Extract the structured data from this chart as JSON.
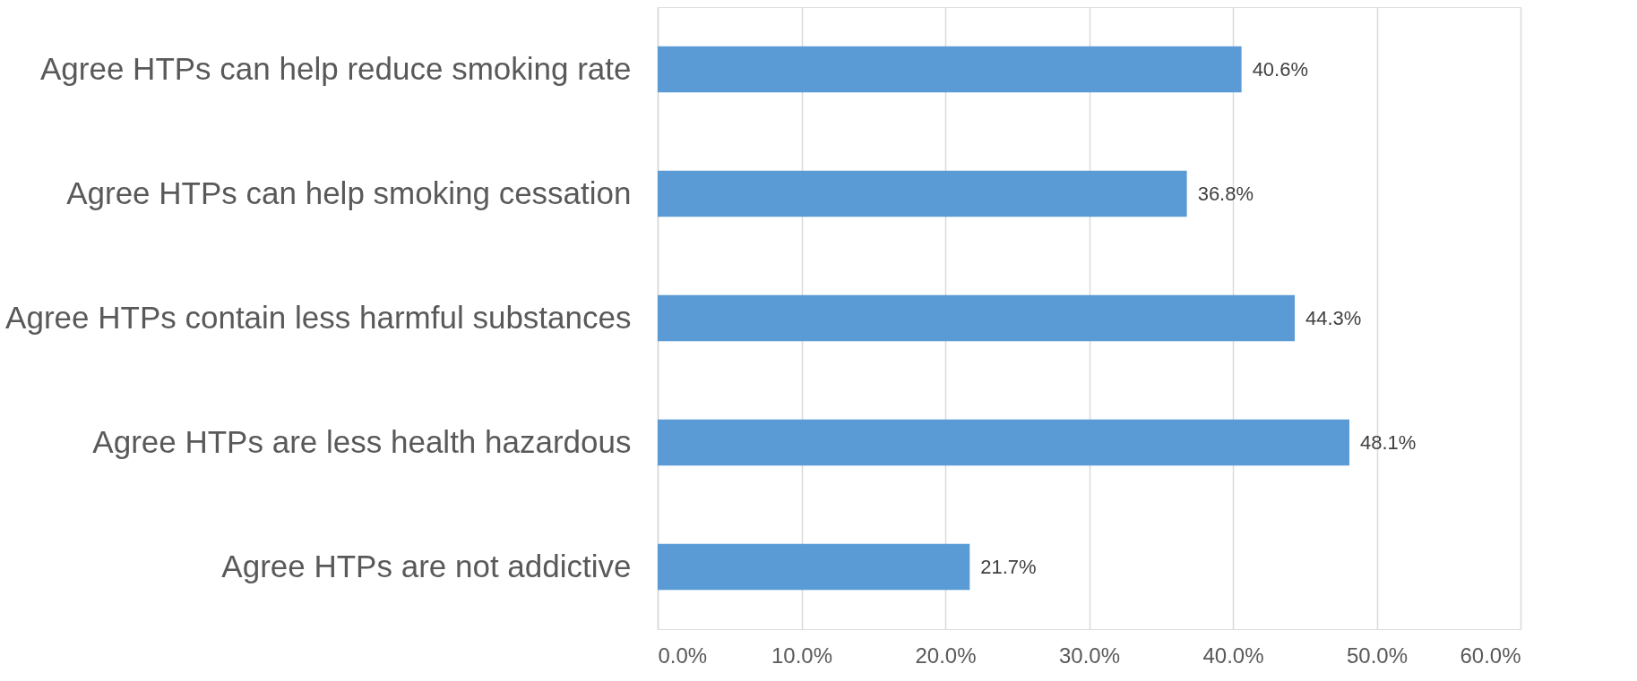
{
  "chart_data": {
    "type": "bar",
    "orientation": "horizontal",
    "categories": [
      "Agree HTPs can help reduce smoking rate",
      "Agree HTPs can help smoking cessation",
      "Agree HTPs contain less harmful substances",
      "Agree HTPs are less health hazardous",
      "Agree HTPs are not addictive"
    ],
    "values": [
      40.6,
      36.8,
      44.3,
      48.1,
      21.7
    ],
    "value_labels": [
      "40.6%",
      "36.8%",
      "44.3%",
      "48.1%",
      "21.7%"
    ],
    "color": "#5b9bd5",
    "xlim": [
      0,
      60
    ],
    "xticks": [
      {
        "value": 0,
        "label": "0.0%"
      },
      {
        "value": 10,
        "label": "10.0%"
      },
      {
        "value": 20,
        "label": "20.0%"
      },
      {
        "value": 30,
        "label": "30.0%"
      },
      {
        "value": 40,
        "label": "40.0%"
      },
      {
        "value": 50,
        "label": "50.0%"
      },
      {
        "value": 60,
        "label": "60.0%"
      }
    ],
    "grid": "x"
  }
}
